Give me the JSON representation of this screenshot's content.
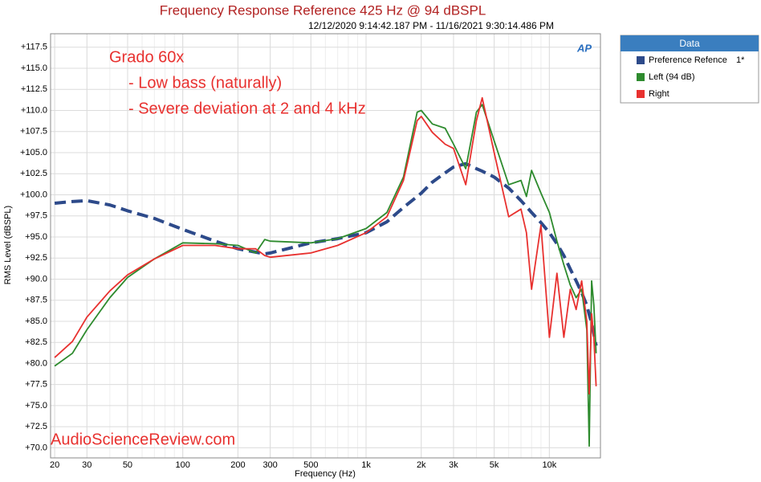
{
  "chart_data": {
    "type": "line",
    "title": "Frequency Response Reference 425 Hz @ 94 dBSPL",
    "subtitle": "12/12/2020 9:14:42.187 PM - 11/16/2021 9:30:14.486 PM",
    "x_label": "Frequency (Hz)",
    "y_label": "RMS Level (dBSPL)",
    "annotations": [
      "Grado 60x",
      "- Low bass (naturally)",
      "- Severe deviation at 2 and 4 kHz"
    ],
    "watermark": "AudioScienceReview.com",
    "logo": "AP",
    "legend_title": "Data",
    "x_log": true,
    "grid": true,
    "xlim": [
      19,
      19000
    ],
    "ylim": [
      68.8,
      119.1
    ],
    "xticks": [
      20,
      30,
      50,
      100,
      200,
      300,
      500,
      {
        "value": 1000,
        "label": "1k"
      },
      {
        "value": 2000,
        "label": "2k"
      },
      {
        "value": 3000,
        "label": "3k"
      },
      {
        "value": 5000,
        "label": "5k"
      },
      {
        "value": 10000,
        "label": "10k"
      }
    ],
    "yticks": [
      {
        "value": 70,
        "label": "+70.0"
      },
      {
        "value": 72.5,
        "label": "+72.5"
      },
      {
        "value": 75,
        "label": "+75.0"
      },
      {
        "value": 77.5,
        "label": "+77.5"
      },
      {
        "value": 80,
        "label": "+80.0"
      },
      {
        "value": 82.5,
        "label": "+82.5"
      },
      {
        "value": 85,
        "label": "+85.0"
      },
      {
        "value": 87.5,
        "label": "+87.5"
      },
      {
        "value": 90,
        "label": "+90.0"
      },
      {
        "value": 92.5,
        "label": "+92.5"
      },
      {
        "value": 95,
        "label": "+95.0"
      },
      {
        "value": 97.5,
        "label": "+97.5"
      },
      {
        "value": 100,
        "label": "+100.0"
      },
      {
        "value": 102.5,
        "label": "+102.5"
      },
      {
        "value": 105,
        "label": "+105.0"
      },
      {
        "value": 107.5,
        "label": "+107.5"
      },
      {
        "value": 110,
        "label": "+110.0"
      },
      {
        "value": 112.5,
        "label": "+112.5"
      },
      {
        "value": 115,
        "label": "+115.0"
      },
      {
        "value": 117.5,
        "label": "+117.5"
      }
    ],
    "x": [
      20,
      25,
      30,
      40,
      50,
      70,
      100,
      150,
      200,
      250,
      280,
      300,
      500,
      700,
      1000,
      1300,
      1600,
      1900,
      2000,
      2300,
      2700,
      3000,
      3500,
      4000,
      4300,
      5000,
      6000,
      7000,
      7500,
      8000,
      9000,
      10000,
      11000,
      12000,
      13000,
      14000,
      15000,
      16000,
      16500,
      17000,
      17500,
      18000
    ],
    "series": [
      {
        "name": "Preference Refence",
        "legend_note": "1*",
        "color": "#2d4a8a",
        "style": "dashed",
        "values": [
          99.0,
          99.2,
          99.3,
          98.8,
          98.1,
          97.2,
          95.9,
          94.5,
          93.6,
          93.2,
          93.0,
          93.1,
          94.3,
          94.8,
          95.5,
          96.8,
          98.5,
          99.8,
          100.2,
          101.5,
          102.6,
          103.3,
          103.7,
          103.1,
          102.8,
          102.1,
          100.8,
          99.3,
          98.6,
          97.9,
          96.7,
          95.5,
          94.2,
          92.8,
          91.2,
          89.8,
          88.4,
          86.9,
          85.8,
          84.8,
          83.5,
          82.1
        ]
      },
      {
        "name": "Left (94 dB)",
        "color": "#2e8b2e",
        "style": "solid",
        "values": [
          79.7,
          81.2,
          84.0,
          87.8,
          90.2,
          92.4,
          94.3,
          94.2,
          94.0,
          93.1,
          94.7,
          94.5,
          94.3,
          94.8,
          96.0,
          97.9,
          102.1,
          109.8,
          110.0,
          108.4,
          107.9,
          106.0,
          103.1,
          109.8,
          110.7,
          106.4,
          101.2,
          101.7,
          99.8,
          102.9,
          100.2,
          97.9,
          94.5,
          91.7,
          89.3,
          87.8,
          88.8,
          84.0,
          70.2,
          89.8,
          86.9,
          81.2
        ]
      },
      {
        "name": "Right",
        "color": "#e8312f",
        "style": "solid",
        "values": [
          80.7,
          82.6,
          85.5,
          88.6,
          90.5,
          92.4,
          94.0,
          94.0,
          93.6,
          93.6,
          92.8,
          92.6,
          93.1,
          94.0,
          95.5,
          97.4,
          101.7,
          108.8,
          109.3,
          107.4,
          106.0,
          105.5,
          101.2,
          108.8,
          111.5,
          105.0,
          97.4,
          98.3,
          95.5,
          88.8,
          96.4,
          83.1,
          90.7,
          83.1,
          88.8,
          86.4,
          89.8,
          85.0,
          76.4,
          85.9,
          83.1,
          77.3
        ]
      }
    ]
  }
}
